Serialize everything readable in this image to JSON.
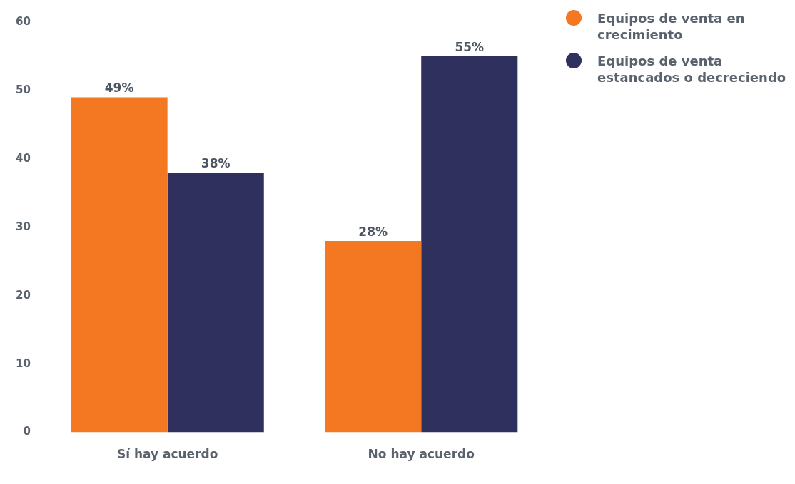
{
  "chart_data": {
    "type": "bar",
    "categories": [
      "Sí hay acuerdo",
      "No hay acuerdo"
    ],
    "series": [
      {
        "name": "Equipos de venta en crecimiento",
        "color": "#f47722",
        "values": [
          49,
          28
        ],
        "value_labels": [
          "49%",
          "28%"
        ]
      },
      {
        "name": "Equipos de venta estancados o decreciendo",
        "color": "#30305e",
        "values": [
          38,
          55
        ],
        "value_labels": [
          "38%",
          "55%"
        ]
      }
    ],
    "ylim": [
      0,
      60
    ],
    "yticks": [
      0,
      10,
      20,
      30,
      40,
      50,
      60
    ],
    "grid": false,
    "legend": "top right"
  }
}
